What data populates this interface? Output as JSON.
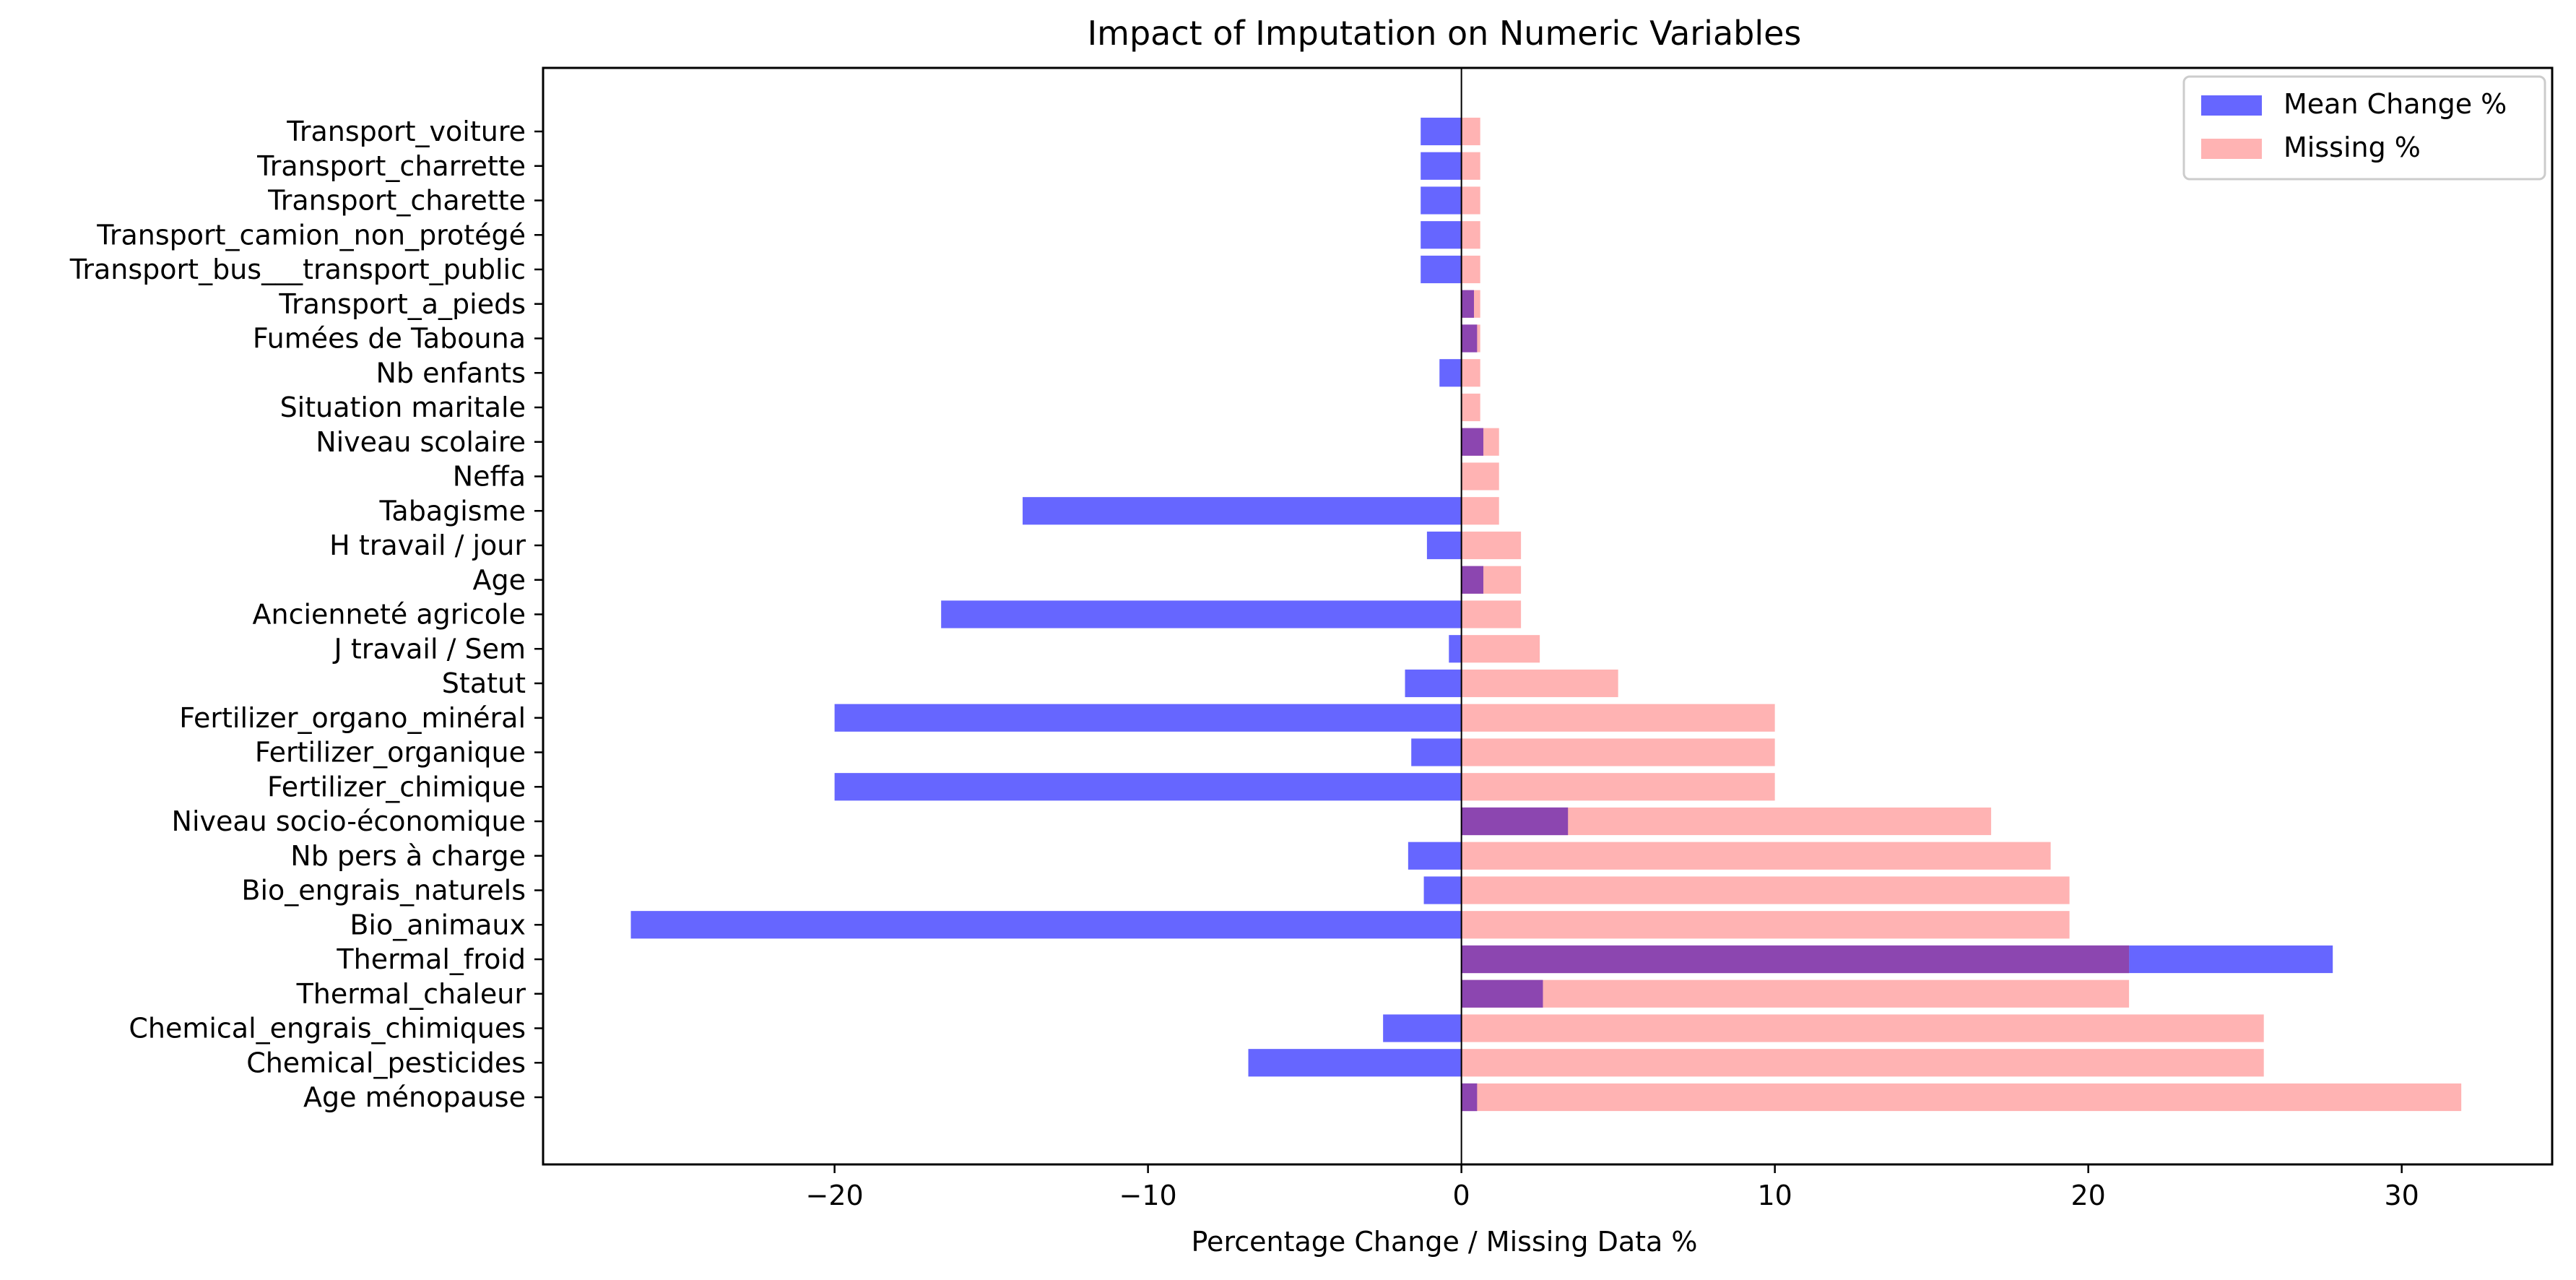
{
  "chart_data": {
    "type": "bar",
    "orientation": "horizontal",
    "title": "Impact of Imputation on Numeric Variables",
    "xlabel": "Percentage Change / Missing Data %",
    "ylabel": "",
    "xlim": [
      -29.3,
      34.8
    ],
    "xticks": [
      -20,
      -10,
      0,
      10,
      20,
      30
    ],
    "xtick_labels": [
      "−20",
      "−10",
      "0",
      "10",
      "20",
      "30"
    ],
    "grid": false,
    "legend_position": "top-right",
    "zero_line": true,
    "categories": [
      "Transport_voiture",
      "Transport_charrette",
      "Transport_charette",
      "Transport_camion_non_protégé",
      "Transport_bus___transport_public",
      "Transport_a_pieds",
      "Fumées de Tabouna",
      "Nb enfants",
      "Situation maritale",
      "Niveau scolaire",
      "Neffa",
      "Tabagisme",
      "H travail / jour",
      "Age",
      "Ancienneté agricole",
      "J travail / Sem",
      "Statut",
      "Fertilizer_organo_minéral",
      "Fertilizer_organique",
      "Fertilizer_chimique",
      "Niveau socio-économique",
      "Nb pers à charge",
      "Bio_engrais_naturels",
      "Bio_animaux",
      "Thermal_froid",
      "Thermal_chaleur",
      "Chemical_engrais_chimiques",
      "Chemical_pesticides",
      "Age ménopause"
    ],
    "series": [
      {
        "name": "Mean Change %",
        "color": "#6666ff",
        "values": [
          -1.3,
          -1.3,
          -1.3,
          -1.3,
          -1.3,
          0.4,
          0.5,
          -0.7,
          0.0,
          0.7,
          0.0,
          -14.0,
          -1.1,
          0.7,
          -16.6,
          -0.4,
          -1.8,
          -20.0,
          -1.6,
          -20.0,
          3.4,
          -1.7,
          -1.2,
          -26.5,
          27.8,
          2.6,
          -2.5,
          -6.8,
          0.5
        ]
      },
      {
        "name": "Missing %",
        "color": "#ffb3b3",
        "values": [
          0.6,
          0.6,
          0.6,
          0.6,
          0.6,
          0.6,
          0.6,
          0.6,
          0.6,
          1.2,
          1.2,
          1.2,
          1.9,
          1.9,
          1.9,
          2.5,
          5.0,
          10.0,
          10.0,
          10.0,
          16.9,
          18.8,
          19.4,
          19.4,
          21.3,
          21.3,
          25.6,
          25.6,
          31.9
        ]
      }
    ],
    "overlap_color": "#8c46b0"
  }
}
